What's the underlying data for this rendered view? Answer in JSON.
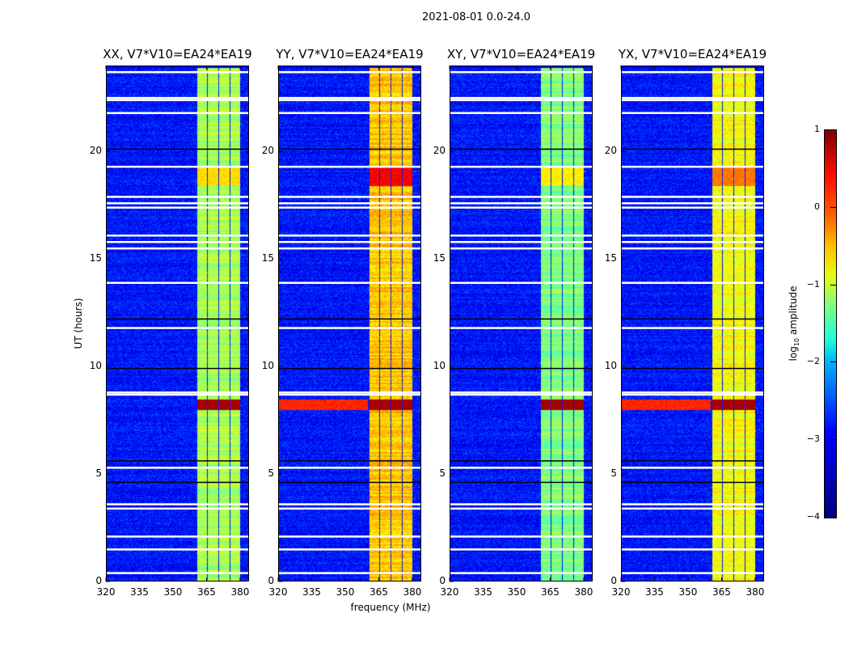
{
  "suptitle": "2021-08-01 0.0-24.0",
  "chart_data": {
    "type": "heatmap",
    "title": "2021-08-01 0.0-24.0",
    "xlabel": "frequency (MHz)",
    "ylabel": "UT (hours)",
    "xlim": [
      320,
      384
    ],
    "ylim": [
      0,
      24
    ],
    "xticks": [
      "320",
      "335",
      "350",
      "365",
      "380"
    ],
    "xtick_values": [
      320,
      335,
      350,
      365,
      380
    ],
    "yticks": [
      "0",
      "5",
      "10",
      "15",
      "20"
    ],
    "ytick_values": [
      0,
      5,
      10,
      15,
      20
    ],
    "colorbar": {
      "label_main": "log",
      "label_sub": "10",
      "label_rest": " amplitude",
      "range": [
        -4,
        1
      ],
      "ticks": [
        "1",
        "0",
        "−1",
        "−2",
        "−3",
        "−4"
      ],
      "tick_values": [
        1,
        0,
        -1,
        -2,
        -3,
        -4
      ],
      "colormap": "jet"
    },
    "background_level": -3.3,
    "rfi_bands_mhz": [
      [
        360.5,
        365.0
      ],
      [
        365.5,
        370.0
      ],
      [
        370.5,
        375.0
      ],
      [
        375.5,
        380.0
      ]
    ],
    "flagged_hours": [
      23.7,
      22.5,
      22.4,
      21.8,
      19.3,
      17.9,
      17.6,
      17.4,
      16.1,
      15.8,
      15.5,
      13.9,
      11.8,
      8.8,
      8.7,
      5.3,
      3.6,
      3.4,
      2.1,
      1.5,
      0.4
    ],
    "dark_hours": [
      20.1,
      9.9,
      5.6,
      4.6,
      12.2
    ],
    "panels": [
      {
        "title": "XX, V7*V10=EA24*EA19",
        "band_level": -1.3,
        "event_8h_broadband": false,
        "event_19h_level": -0.7
      },
      {
        "title": "YY, V7*V10=EA24*EA19",
        "band_level": -0.6,
        "event_8h_broadband": true,
        "event_19h_level": 0.4
      },
      {
        "title": "XY, V7*V10=EA24*EA19",
        "band_level": -1.5,
        "event_8h_broadband": false,
        "event_19h_level": -0.8
      },
      {
        "title": "YX, V7*V10=EA24*EA19",
        "band_level": -0.9,
        "event_8h_broadband": true,
        "event_19h_level": -0.2
      }
    ]
  }
}
